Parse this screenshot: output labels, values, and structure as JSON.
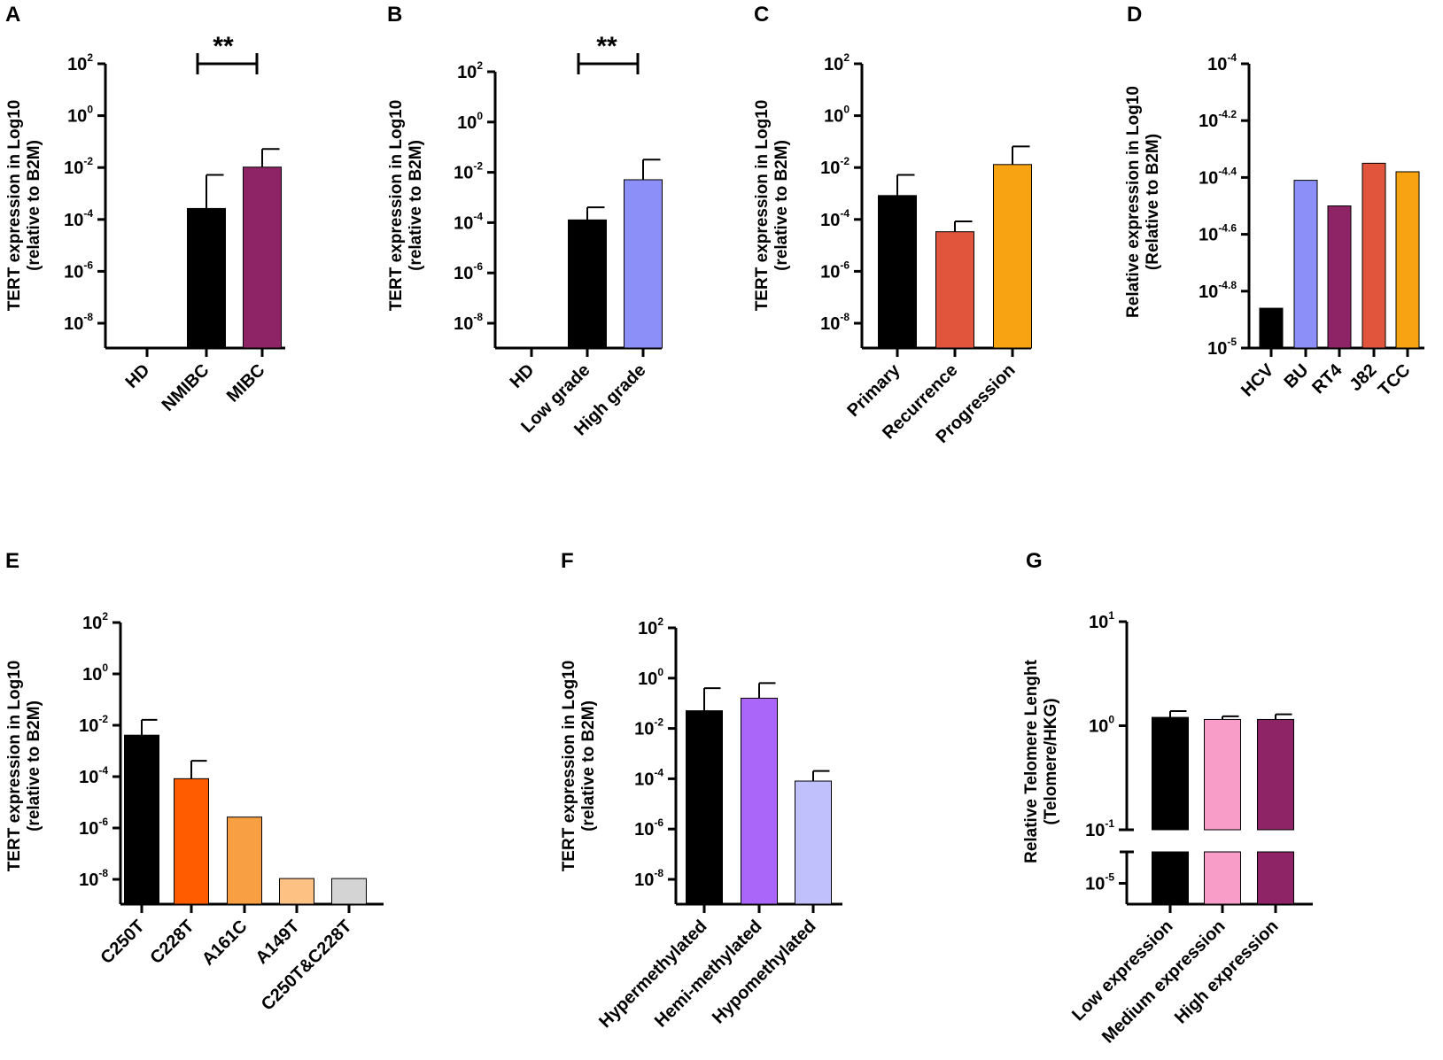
{
  "chart_data": [
    {
      "panel": "A",
      "type": "bar",
      "scale": "log10",
      "ylabel": [
        "TERT expression in Log10",
        "(relative to B2M)"
      ],
      "yticks": [
        "10^2",
        "10^0",
        "10^-2",
        "10^-4",
        "10^-6",
        "10^-8"
      ],
      "ylim_exp": [
        -9,
        2
      ],
      "categories": [
        "HD",
        "NMIBC",
        "MIBC"
      ],
      "values_exp": [
        null,
        -3.6,
        -2.0
      ],
      "errors_exp": [
        null,
        -2.3,
        -1.3
      ],
      "colors": [
        "#000000",
        "#000000",
        "#8e2465"
      ],
      "significance": {
        "from": 1,
        "to": 2,
        "label": "**"
      }
    },
    {
      "panel": "B",
      "type": "bar",
      "scale": "log10",
      "ylabel": [
        "TERT expression in Log10",
        "(relative to B2M)"
      ],
      "yticks": [
        "10^2",
        "10^0",
        "10^-2",
        "10^-4",
        "10^-6",
        "10^-8"
      ],
      "ylim_exp": [
        -9,
        2
      ],
      "categories": [
        "HD",
        "Low grade",
        "High grade"
      ],
      "values_exp": [
        null,
        -3.9,
        -2.3
      ],
      "errors_exp": [
        null,
        -3.4,
        -1.5
      ],
      "colors": [
        "#000000",
        "#000000",
        "#8c8ff7"
      ],
      "significance": {
        "from": 1,
        "to": 2,
        "label": "**"
      }
    },
    {
      "panel": "C",
      "type": "bar",
      "scale": "log10",
      "ylabel": [
        "TERT expression in Log10",
        "(relative to B2M)"
      ],
      "yticks": [
        "10^2",
        "10^0",
        "10^-2",
        "10^-4",
        "10^-6",
        "10^-8"
      ],
      "ylim_exp": [
        -9,
        2
      ],
      "categories": [
        "Primary",
        "Recurrence",
        "Progression"
      ],
      "values_exp": [
        -3.1,
        -4.5,
        -1.9
      ],
      "errors_exp": [
        -2.3,
        -4.1,
        -1.2
      ],
      "colors": [
        "#000000",
        "#e0553b",
        "#f8a312"
      ]
    },
    {
      "panel": "D",
      "type": "bar",
      "scale": "log10",
      "ylabel": [
        "Relative expression in Log10",
        "(Relative to B2M)"
      ],
      "yticks": [
        "10^-4",
        "10^-4.2",
        "10^-4.4",
        "10^-4.6",
        "10^-4.8",
        "10^-5"
      ],
      "ylim_exp": [
        -5,
        -4
      ],
      "categories": [
        "HCV",
        "BU",
        "RT4",
        "J82",
        "TCC"
      ],
      "values_exp": [
        -4.86,
        -4.41,
        -4.5,
        -4.35,
        -4.38
      ],
      "colors": [
        "#000000",
        "#8c8ff7",
        "#8e2465",
        "#e0553b",
        "#f8a312"
      ]
    },
    {
      "panel": "E",
      "type": "bar",
      "scale": "log10",
      "ylabel": [
        "TERT expression in Log10",
        "(relative to B2M)"
      ],
      "yticks": [
        "10^2",
        "10^0",
        "10^-2",
        "10^-4",
        "10^-6",
        "10^-8"
      ],
      "ylim_exp": [
        -9,
        2
      ],
      "categories": [
        "C250T",
        "C228T",
        "A161C",
        "A149T",
        "C250T&C228T"
      ],
      "values_exp": [
        -2.4,
        -4.1,
        -5.6,
        -8.0,
        -8.0
      ],
      "errors_exp": [
        -1.8,
        -3.4,
        null,
        null,
        null
      ],
      "colors": [
        "#000000",
        "#ff5c00",
        "#f89f43",
        "#fdc184",
        "#d4d4d4"
      ]
    },
    {
      "panel": "F",
      "type": "bar",
      "scale": "log10",
      "ylabel": [
        "TERT expression in Log10",
        "(relative to B2M)"
      ],
      "yticks": [
        "10^2",
        "10^0",
        "10^-2",
        "10^-4",
        "10^-6",
        "10^-8"
      ],
      "ylim_exp": [
        -9,
        2
      ],
      "categories": [
        "Hypermethylated",
        "Hemi-methylated",
        "Hypomethylated"
      ],
      "values_exp": [
        -1.3,
        -0.8,
        -4.1
      ],
      "errors_exp": [
        -0.4,
        -0.2,
        -3.7
      ],
      "colors": [
        "#000000",
        "#a966f9",
        "#c0c1fc"
      ]
    },
    {
      "panel": "G",
      "type": "bar",
      "scale": "log10",
      "ylabel": [
        "Relative Telomere Lenght",
        "(Telomere/HKG)"
      ],
      "yticks": [
        "10^1",
        "10^0",
        "10^-1",
        "10^-5"
      ],
      "ylim_exp": [
        -1,
        1
      ],
      "broken_axis_lower_exp": -5,
      "categories": [
        "Low expression",
        "Medium expression",
        "High expression"
      ],
      "values_exp": [
        0.08,
        0.06,
        0.06
      ],
      "errors_exp": [
        0.14,
        0.09,
        0.11
      ],
      "colors": [
        "#000000",
        "#f89cc8",
        "#8e2465"
      ]
    }
  ]
}
